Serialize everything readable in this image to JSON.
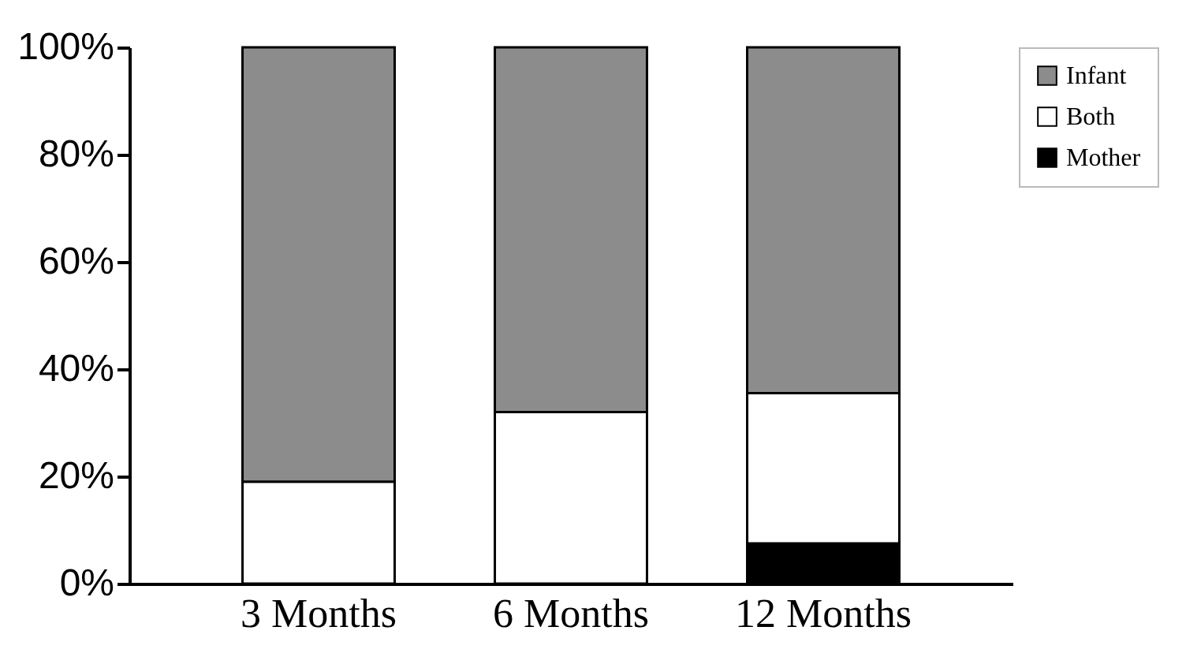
{
  "chart_data": {
    "type": "bar",
    "stacked": true,
    "categories": [
      "3 Months",
      "6 Months",
      "12 Months"
    ],
    "series": [
      {
        "name": "Mother",
        "color": "#000000",
        "values": [
          0,
          0,
          7.5
        ]
      },
      {
        "name": "Both",
        "color": "#ffffff",
        "values": [
          19,
          32,
          28
        ]
      },
      {
        "name": "Infant",
        "color": "#8c8c8c",
        "values": [
          81,
          68,
          64.5
        ]
      }
    ],
    "ylim": [
      0,
      100
    ],
    "yticks": [
      {
        "value": 0,
        "label": "0%"
      },
      {
        "value": 20,
        "label": "20%"
      },
      {
        "value": 40,
        "label": "40%"
      },
      {
        "value": 60,
        "label": "60%"
      },
      {
        "value": 80,
        "label": "80%"
      },
      {
        "value": 100,
        "label": "100%"
      }
    ],
    "grid": false,
    "legend": "right"
  }
}
